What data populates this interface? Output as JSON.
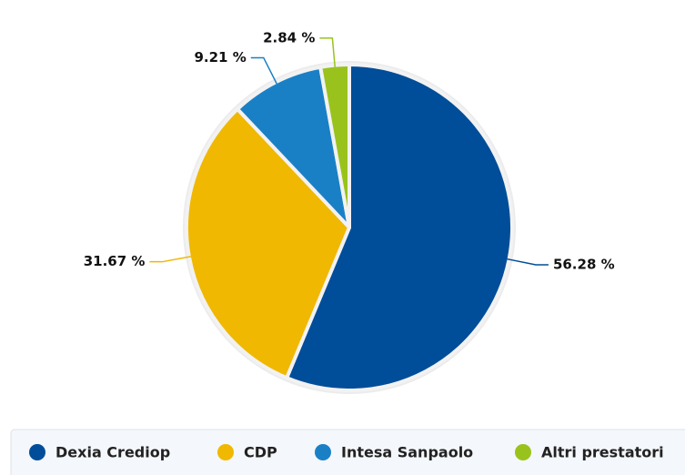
{
  "chart_data": {
    "type": "pie",
    "categories": [
      "Dexia Crediop",
      "CDP",
      "Intesa Sanpaolo",
      "Altri prestatori"
    ],
    "values": [
      56.28,
      31.67,
      9.21,
      2.84
    ],
    "value_labels": [
      "56.28 %",
      "31.67 %",
      "9.21 %",
      "2.84 %"
    ],
    "colors": [
      "#004d99",
      "#f0b800",
      "#1a80c6",
      "#99c31c"
    ],
    "legend": "bottom"
  }
}
